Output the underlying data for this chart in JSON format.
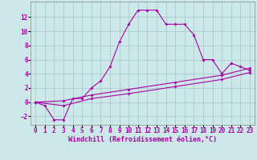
{
  "xlabel": "Windchill (Refroidissement éolien,°C)",
  "background_color": "#cce8e8",
  "grid_color": "#aacccc",
  "line_color": "#aa00aa",
  "xlim": [
    -0.5,
    23.5
  ],
  "ylim": [
    -3.2,
    14.2
  ],
  "xticks": [
    0,
    1,
    2,
    3,
    4,
    5,
    6,
    7,
    8,
    9,
    10,
    11,
    12,
    13,
    14,
    15,
    16,
    17,
    18,
    19,
    20,
    21,
    22,
    23
  ],
  "yticks": [
    -2,
    0,
    2,
    4,
    6,
    8,
    10,
    12
  ],
  "line1_x": [
    0,
    1,
    2,
    3,
    4,
    5,
    6,
    7,
    8,
    9,
    10,
    11,
    12,
    13,
    14,
    15,
    16,
    17,
    18,
    19,
    20,
    21,
    22,
    23
  ],
  "line1_y": [
    0,
    -0.5,
    -2.5,
    -2.5,
    0.5,
    0.5,
    2.0,
    3.0,
    5.0,
    8.5,
    11.0,
    13.0,
    13.0,
    13.0,
    11.0,
    11.0,
    11.0,
    9.5,
    6.0,
    6.0,
    4.0,
    5.5,
    5.0,
    4.5
  ],
  "line2_x": [
    0,
    3,
    6,
    10,
    15,
    20,
    23
  ],
  "line2_y": [
    0,
    -0.5,
    0.5,
    1.2,
    2.2,
    3.2,
    4.2
  ],
  "line3_x": [
    0,
    3,
    6,
    10,
    15,
    20,
    23
  ],
  "line3_y": [
    0,
    0.2,
    1.0,
    1.8,
    2.8,
    3.8,
    4.8
  ],
  "xlabel_fontsize": 6,
  "tick_fontsize": 5.5
}
